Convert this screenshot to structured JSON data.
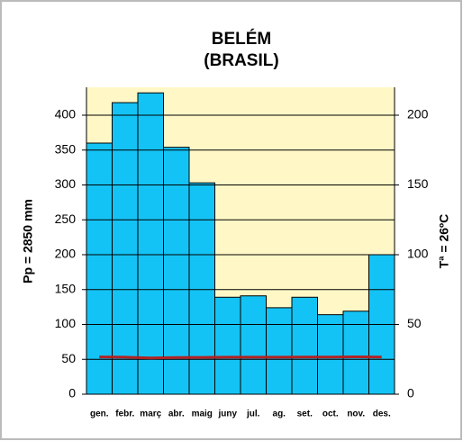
{
  "chart_data": {
    "type": "bar",
    "title": "BELÉM",
    "subtitle": "(BRASIL)",
    "y_label": "Pp = 2850  mm",
    "y2_label": "Tª = 26ºC",
    "categories": [
      "gen.",
      "febr.",
      "març",
      "abr.",
      "maig",
      "juny",
      "jul.",
      "ag.",
      "set.",
      "oct.",
      "nov.",
      "des."
    ],
    "series": [
      {
        "color": "#14c3f5",
        "values": [
          360,
          418,
          432,
          354,
          303,
          139,
          141,
          124,
          139,
          114,
          119,
          200
        ]
      },
      {
        "color": "#b22222",
        "type": "line",
        "axis": "y2",
        "values": [
          26.7,
          26.5,
          26,
          26.3,
          26.4,
          26.5,
          26.5,
          26.5,
          26.6,
          26.6,
          26.8,
          26.6
        ]
      }
    ],
    "ylim": [
      0,
      440
    ],
    "yticks": [
      0,
      50,
      100,
      150,
      200,
      250,
      300,
      350,
      400
    ],
    "y2lim": [
      0,
      220
    ],
    "y2ticks": [
      0,
      50,
      100,
      150,
      200
    ],
    "grid": true,
    "plot_background": "#fff8c6"
  }
}
